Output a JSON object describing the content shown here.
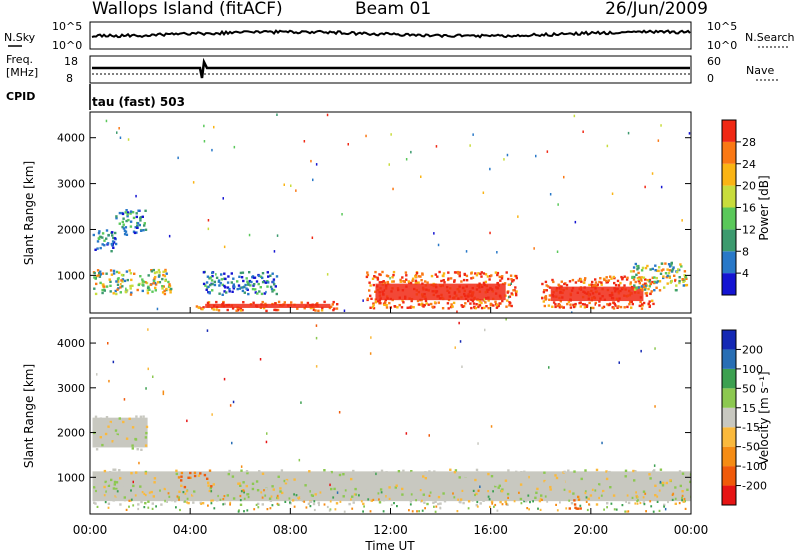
{
  "header": {
    "site": "Wallops Island (fitACF)",
    "beam": "Beam 01",
    "date": "26/Jun/2009"
  },
  "strip": {
    "nsky_label": "N.Sky",
    "nsearch_label": "N.Search",
    "freq_label_1": "Freq.",
    "freq_label_2": "[MHz]",
    "nave_label": "Nave",
    "cpid_label": "CPID",
    "cpid_text": "tau (fast) 503",
    "noise_ticks_left": [
      "10^5",
      "10^0"
    ],
    "noise_ticks_right": [
      "10^5",
      "10^0"
    ],
    "freq_ticks": [
      "18",
      "8"
    ],
    "nave_ticks": [
      "60",
      "0"
    ]
  },
  "colorbars": {
    "power": {
      "label": "Power [dB]",
      "ticks": [
        "4",
        "8",
        "12",
        "16",
        "20",
        "24",
        "28"
      ]
    },
    "velocity": {
      "label": "Velocity [m s⁻¹]",
      "ticks": [
        "-200",
        "-100",
        "-50",
        "-15",
        "15",
        "50",
        "100",
        "200"
      ]
    }
  },
  "chart_data": [
    {
      "type": "heatmap",
      "ylabel": "Slant Range [km]",
      "ylim": [
        180,
        4560
      ],
      "xlim": [
        0,
        24
      ],
      "yticks": [
        "1000",
        "2000",
        "3000",
        "4000"
      ],
      "quantity": "Power [dB]",
      "bands": [
        {
          "t0": 0.1,
          "t1": 1.0,
          "r0": 1550,
          "r1": 2050,
          "level": "weak"
        },
        {
          "t0": 1.0,
          "t1": 2.2,
          "r0": 1900,
          "r1": 2450,
          "level": "weak"
        },
        {
          "t0": 0.1,
          "t1": 3.2,
          "r0": 600,
          "r1": 1150,
          "level": "moderate"
        },
        {
          "t0": 4.5,
          "t1": 7.5,
          "r0": 600,
          "r1": 1100,
          "level": "weak"
        },
        {
          "t0": 4.2,
          "t1": 10.0,
          "r0": 250,
          "r1": 450,
          "level": "strong"
        },
        {
          "t0": 11.0,
          "t1": 17.0,
          "r0": 300,
          "r1": 1100,
          "level": "strong"
        },
        {
          "t0": 18.0,
          "t1": 22.5,
          "r0": 300,
          "r1": 1000,
          "level": "strong"
        },
        {
          "t0": 21.5,
          "t1": 23.8,
          "r0": 700,
          "r1": 1300,
          "level": "moderate"
        }
      ]
    },
    {
      "type": "heatmap",
      "ylabel": "Slant Range [km]",
      "xlabel": "Time UT",
      "ylim": [
        180,
        4560
      ],
      "xlim": [
        0,
        24
      ],
      "xticks": [
        "00:00",
        "04:00",
        "08:00",
        "12:00",
        "16:00",
        "20:00",
        "00:00"
      ],
      "yticks": [
        "1000",
        "2000",
        "3000",
        "4000"
      ],
      "quantity": "Velocity [m s-1]",
      "bands": [
        {
          "t0": 0.1,
          "t1": 2.3,
          "r0": 1600,
          "r1": 2400,
          "level": "near-zero"
        },
        {
          "t0": 0.1,
          "t1": 24.0,
          "r0": 400,
          "r1": 1200,
          "level": "near-zero"
        },
        {
          "t0": 3.5,
          "t1": 5.0,
          "r0": 800,
          "r1": 1200,
          "level": "negative"
        },
        {
          "t0": 19.0,
          "t1": 20.0,
          "r0": 300,
          "r1": 700,
          "level": "negative"
        }
      ]
    }
  ]
}
